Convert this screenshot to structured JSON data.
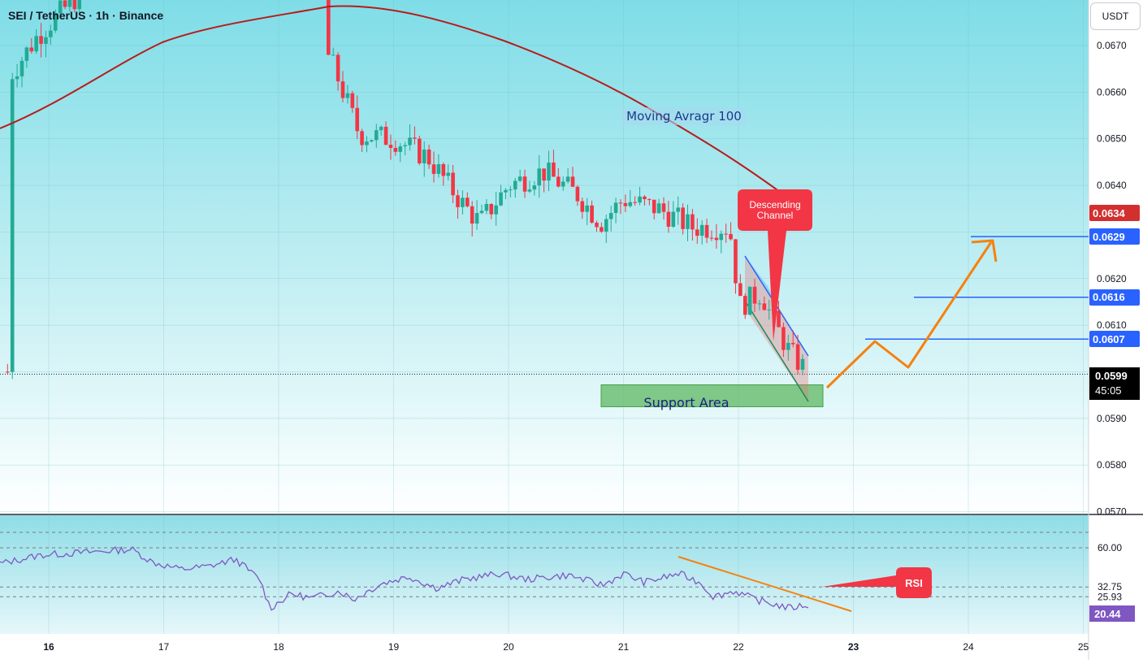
{
  "header": {
    "symbol": "SEI / TetherUS",
    "interval": "1h",
    "exchange": "Binance",
    "separator": " · "
  },
  "currency_button": "USDT",
  "price_axis": {
    "ticks": [
      "0.0670",
      "0.0660",
      "0.0650",
      "0.0640",
      "0.0620",
      "0.0610",
      "0.0590",
      "0.0580",
      "0.0570"
    ],
    "tick_values": [
      0.067,
      0.066,
      0.065,
      0.064,
      0.062,
      0.061,
      0.059,
      0.058,
      0.057
    ]
  },
  "price_tags": [
    {
      "label": "0.0634",
      "value": 0.0634,
      "color": "#d32f2f"
    },
    {
      "label": "0.0629",
      "value": 0.0629,
      "color": "#2962ff"
    },
    {
      "label": "0.0616",
      "value": 0.0616,
      "color": "#2962ff"
    },
    {
      "label": "0.0607",
      "value": 0.0607,
      "color": "#2962ff"
    }
  ],
  "current_price": {
    "label": "0.0599",
    "value": 0.05995,
    "countdown": "45:05"
  },
  "time_axis": {
    "labels": [
      "16",
      "17",
      "18",
      "19",
      "20",
      "21",
      "22",
      "23",
      "24",
      "25"
    ],
    "bold": [
      "16",
      "23"
    ]
  },
  "annotations": {
    "moving_average": "Moving Avragr 100",
    "descending_channel": "Descending Channel",
    "support_area": "Support Area",
    "rsi": "RSI"
  },
  "rsi_panel": {
    "levels": [
      "60.00",
      "32.75",
      "25.93"
    ],
    "level_values": [
      60,
      32.75,
      25.93
    ],
    "current": "20.44",
    "current_value": 20.44
  },
  "horizontal_levels": [
    0.0629,
    0.0616,
    0.0607
  ],
  "colors": {
    "up": "#22ab94",
    "down": "#f23645",
    "ma": "#b71c1c",
    "bg_top": "#7fdfe8",
    "bg_bottom": "#ffffff",
    "projection": "#f5820e",
    "channel": "#2962ff",
    "support": "#4caf50",
    "rsi_line": "#7e57c2",
    "level_line": "#2962ff"
  },
  "chart_data": {
    "type": "candlestick",
    "symbol": "SEI / TetherUS",
    "timeframe": "1h",
    "x_labels": [
      "16",
      "17",
      "18",
      "19",
      "20",
      "21",
      "22",
      "23",
      "24",
      "25"
    ],
    "ylim": [
      0.0568,
      0.0681
    ],
    "overlays": [
      "MA 100",
      "Descending Channel",
      "Support Area 0.0592–0.0597",
      "Projection path to 0.0629"
    ],
    "rsi": {
      "current": 20.44,
      "levels": [
        60.0,
        32.75,
        25.93
      ]
    }
  }
}
